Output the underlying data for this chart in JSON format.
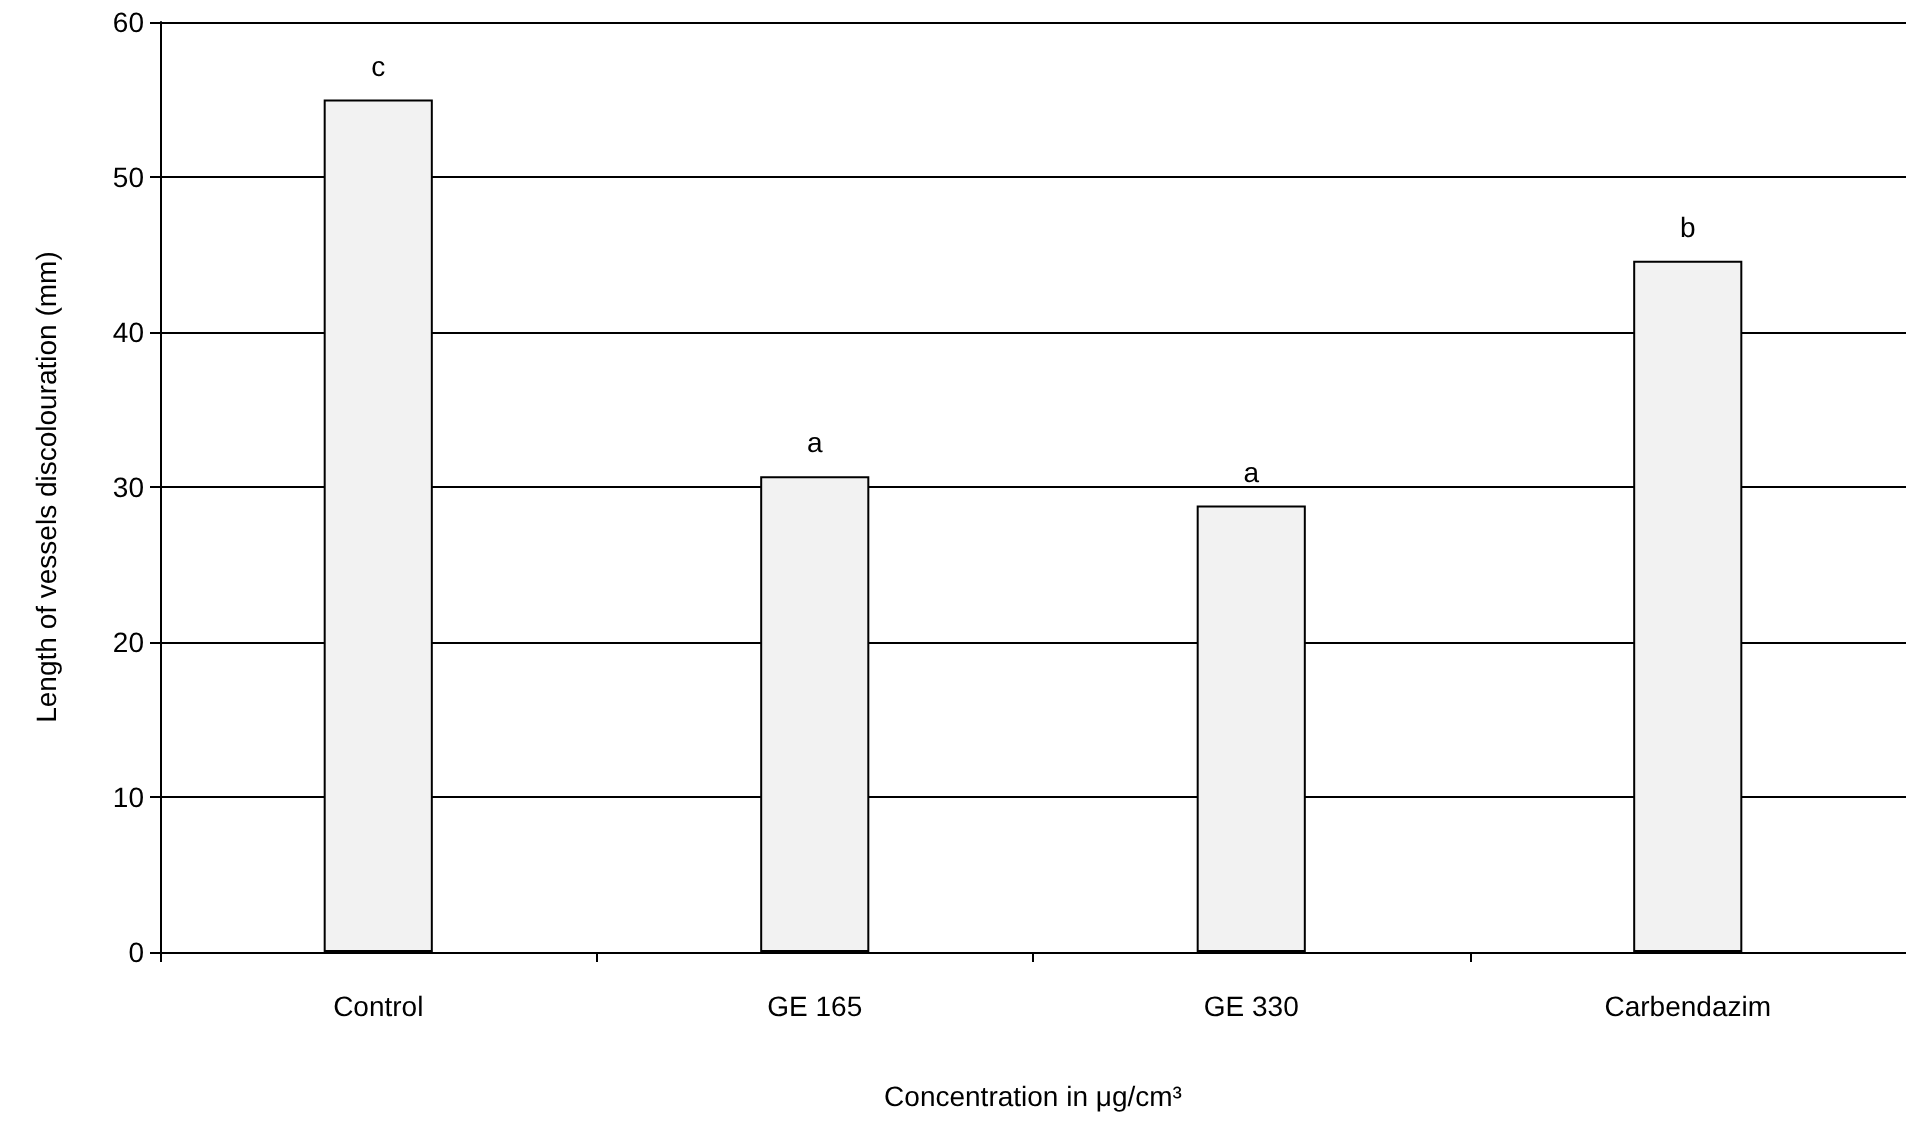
{
  "chart_data": {
    "type": "bar",
    "xlabel": "Concentration in μg/cm³",
    "ylabel": "Length of vessels discolouration (mm)",
    "categories": [
      "Control",
      "GE 165",
      "GE 330",
      "Carbendazim"
    ],
    "values": [
      55,
      30.7,
      28.8,
      44.6
    ],
    "color": "#f2f2f2",
    "ylim": [
      0,
      60
    ],
    "yticks": [
      0,
      10,
      20,
      30,
      40,
      50,
      60
    ],
    "grid": "y",
    "annotations": [
      {
        "text": "c",
        "x": "Control",
        "y": 55
      },
      {
        "text": "a",
        "x": "GE 165",
        "y": 30.7
      },
      {
        "text": "a",
        "x": "GE 330",
        "y": 28.8
      },
      {
        "text": "b",
        "x": "Carbendazim",
        "y": 44.6
      }
    ]
  }
}
